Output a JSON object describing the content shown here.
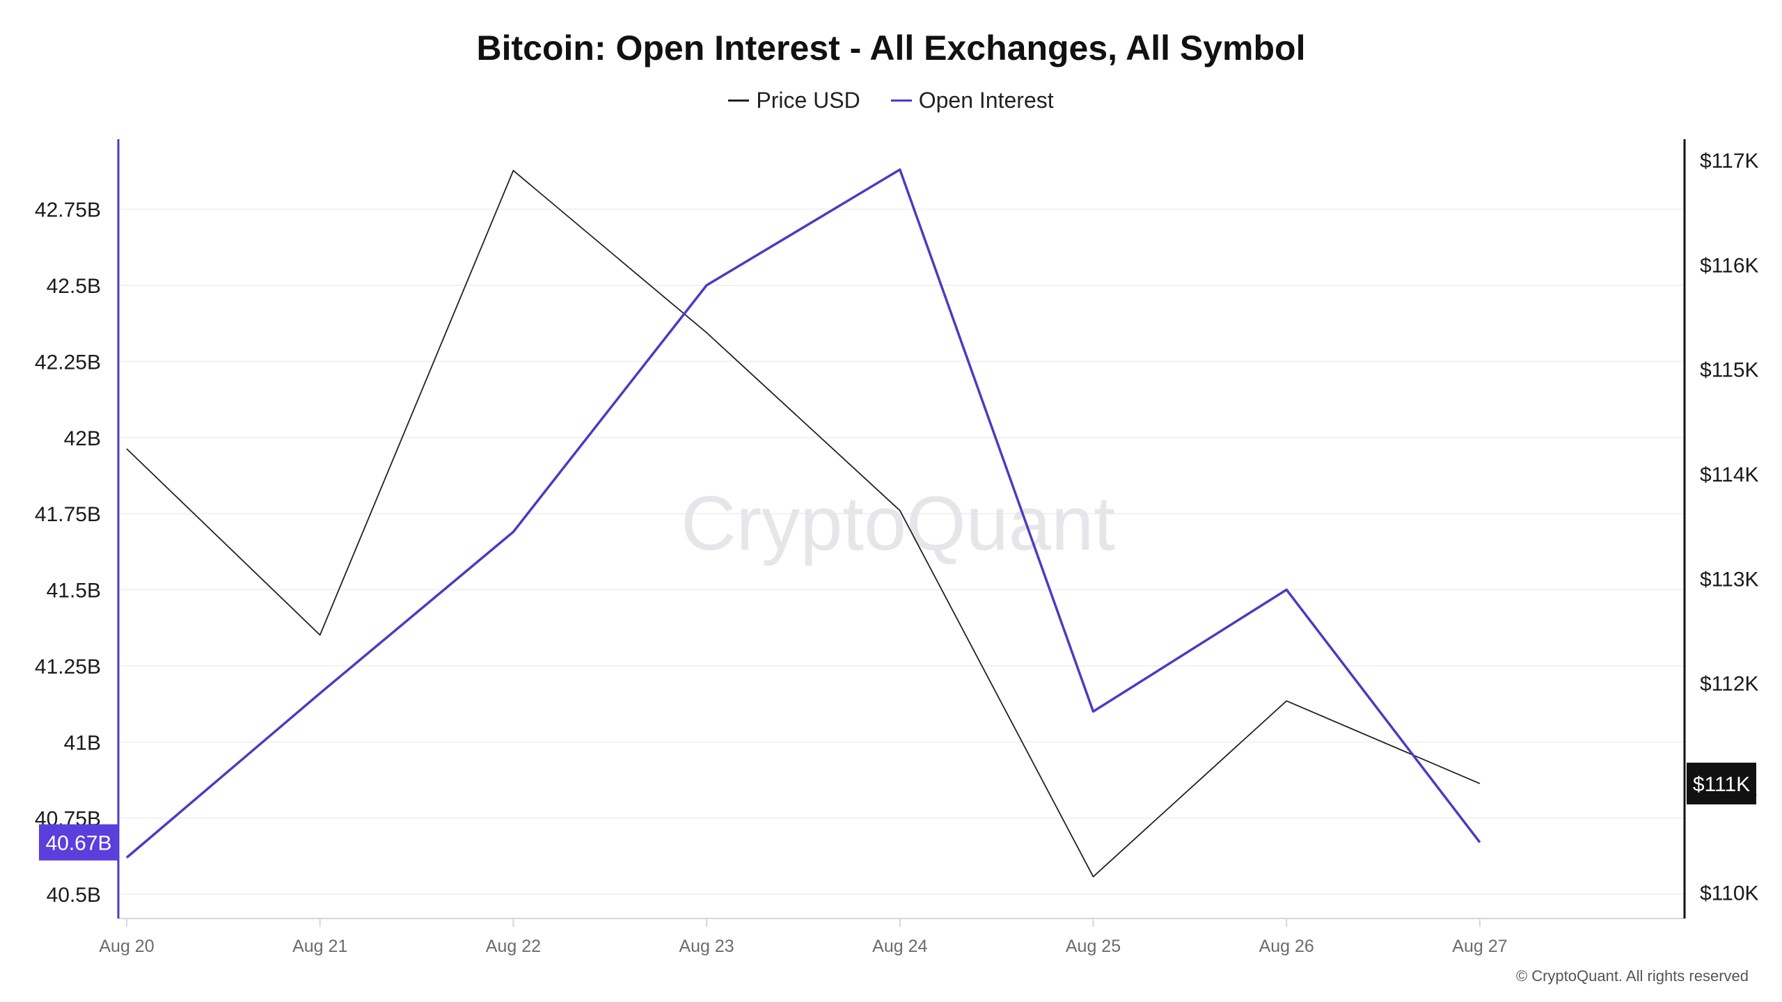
{
  "chart_data": {
    "type": "line",
    "title": "Bitcoin: Open Interest - All Exchanges, All Symbol",
    "categories": [
      "Aug 20",
      "Aug 21",
      "Aug 22",
      "Aug 23",
      "Aug 24",
      "Aug 25",
      "Aug 26",
      "Aug 27"
    ],
    "series": [
      {
        "name": "Price USD",
        "axis": "right",
        "color": "#222222",
        "values": [
          114240,
          112460,
          116900,
          115350,
          113650,
          110150,
          111830,
          111040
        ]
      },
      {
        "name": "Open Interest",
        "axis": "left",
        "color": "#4b3bc4",
        "values": [
          40.62,
          41.16,
          41.69,
          42.5,
          42.88,
          41.1,
          41.5,
          40.67
        ]
      }
    ],
    "left_axis": {
      "ylim": [
        40.42,
        42.98
      ],
      "ticks": [
        40.5,
        40.75,
        41,
        41.25,
        41.5,
        41.75,
        42,
        42.25,
        42.5,
        42.75
      ],
      "tick_labels": [
        "40.5B",
        "40.75B",
        "41B",
        "41.25B",
        "41.5B",
        "41.75B",
        "42B",
        "42.25B",
        "42.5B",
        "42.75B"
      ],
      "color": "#4b3bc4",
      "current_value_label": "40.67B",
      "current_value": 40.67
    },
    "right_axis": {
      "ylim": [
        109750,
        117200
      ],
      "ticks": [
        110000,
        111000,
        112000,
        113000,
        114000,
        115000,
        116000,
        117000
      ],
      "tick_labels": [
        "$110K",
        "$111K",
        "$112K",
        "$113K",
        "$114K",
        "$115K",
        "$116K",
        "$117K"
      ],
      "color": "#111111",
      "current_value_label": "$111K",
      "current_value": 111040
    },
    "grid": true,
    "legend_position": "top-center",
    "watermark": "CryptoQuant"
  },
  "footer": {
    "copyright": "© CryptoQuant. All rights reserved"
  }
}
